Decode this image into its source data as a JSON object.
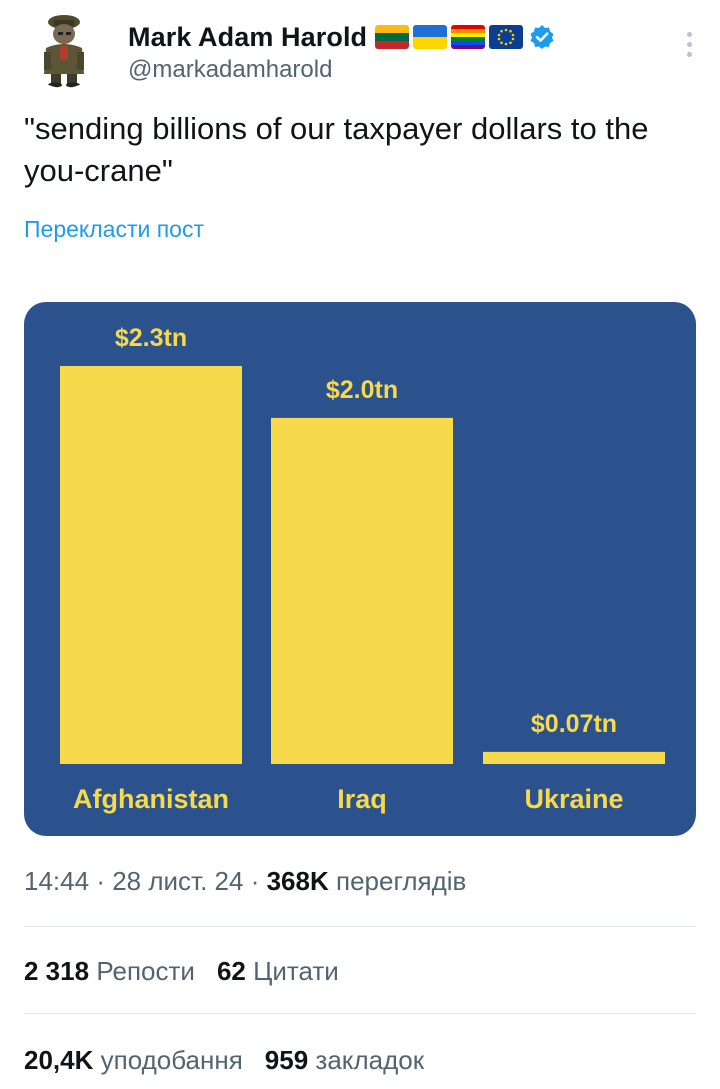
{
  "author": {
    "display_name": "Mark Adam Harold",
    "handle": "@markadamharold",
    "flag_icons": [
      "lithuania-flag-icon",
      "ukraine-flag-icon",
      "rainbow-flag-icon",
      "eu-flag-icon"
    ],
    "verified_icon": "verified-badge-icon"
  },
  "tweet": {
    "text": "\"sending billions of our taxpayer dollars to the you-crane\"",
    "translate_label": "Перекласти пост"
  },
  "chart_data": {
    "type": "bar",
    "categories": [
      "Afghanistan",
      "Iraq",
      "Ukraine"
    ],
    "values": [
      2.3,
      2.0,
      0.07
    ],
    "value_labels": [
      "$2.3tn",
      "$2.0tn",
      "$0.07tn"
    ],
    "title": "",
    "xlabel": "",
    "ylabel": "",
    "ylim": [
      0,
      2.3
    ],
    "grid": false,
    "colors": {
      "background": "#2c528e",
      "bar": "#f7d94c",
      "label": "#f7d94c"
    }
  },
  "meta": {
    "time": "14:44",
    "separator": "·",
    "date": "28 лист. 24",
    "views_count": "368K",
    "views_label": "переглядів"
  },
  "stats": {
    "reposts_count": "2 318",
    "reposts_label": "Репости",
    "quotes_count": "62",
    "quotes_label": "Цитати",
    "likes_count": "20,4K",
    "likes_label": "уподобання",
    "bookmarks_count": "959",
    "bookmarks_label": "закладок"
  },
  "colors": {
    "link": "#1d9bf0",
    "muted": "#536471",
    "text": "#0f1419",
    "divider": "#e3e8eb"
  }
}
